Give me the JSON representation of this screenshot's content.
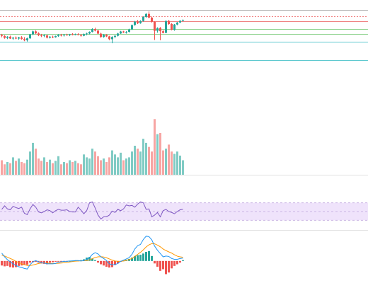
{
  "colors": {
    "up": "#26a69a",
    "down": "#ef5350",
    "volume_up": "#80cbc4",
    "volume_down": "#f7a5a3",
    "rsi_line": "#7e57c2",
    "rsi_band": "#efe3fb",
    "macd_line": "#2196f3",
    "signal_line": "#ff9800",
    "hist_up": "#26a69a",
    "hist_down": "#ef5350",
    "line_top": "#b0b0b0",
    "line_red": "#f08080",
    "line_green": "#8fd38f",
    "line_cyan": "#5fc9cf",
    "pane_divider": "#e0e0e0"
  },
  "chart_data": {
    "type": "candlestick-with-indicators",
    "title": "",
    "grid": false,
    "legend": "none",
    "price": {
      "ylim": [
        80,
        160
      ],
      "h_lines": [
        {
          "value": 155,
          "style": "solid",
          "color_key": "line_top"
        },
        {
          "value": 150,
          "style": "dotted",
          "color_key": "line_red"
        },
        {
          "value": 146,
          "style": "solid",
          "color_key": "line_red"
        },
        {
          "value": 140,
          "style": "solid",
          "color_key": "line_green"
        },
        {
          "value": 136,
          "style": "solid",
          "color_key": "line_green"
        },
        {
          "value": 130,
          "style": "solid",
          "color_key": "line_cyan"
        },
        {
          "value": 115,
          "style": "solid",
          "color_key": "line_cyan"
        }
      ],
      "ohlc": [
        [
          135.2,
          136.0,
          133.3,
          134.4
        ],
        [
          134.4,
          135.0,
          132.2,
          132.8
        ],
        [
          132.8,
          134.2,
          131.9,
          133.8
        ],
        [
          133.8,
          134.6,
          132.0,
          132.3
        ],
        [
          132.3,
          133.5,
          131.3,
          133.0
        ],
        [
          133.0,
          134.0,
          131.8,
          132.3
        ],
        [
          132.3,
          133.7,
          131.4,
          133.2
        ],
        [
          133.2,
          134.2,
          131.5,
          131.9
        ],
        [
          131.9,
          133.4,
          130.2,
          130.9
        ],
        [
          130.9,
          133.0,
          129.9,
          132.5
        ],
        [
          132.5,
          136.0,
          132.0,
          135.6
        ],
        [
          135.6,
          138.6,
          135.0,
          138.0
        ],
        [
          138.0,
          138.8,
          135.8,
          136.4
        ],
        [
          136.4,
          137.3,
          134.2,
          134.9
        ],
        [
          134.9,
          136.0,
          133.5,
          134.4
        ],
        [
          134.4,
          135.6,
          133.4,
          134.8
        ],
        [
          134.8,
          135.4,
          132.4,
          133.0
        ],
        [
          133.0,
          134.3,
          132.4,
          133.8
        ],
        [
          133.8,
          134.6,
          132.6,
          133.3
        ],
        [
          133.3,
          134.6,
          133.0,
          134.3
        ],
        [
          134.3,
          135.8,
          133.7,
          135.2
        ],
        [
          135.2,
          136.0,
          134.0,
          134.8
        ],
        [
          134.8,
          135.8,
          133.9,
          135.4
        ],
        [
          135.4,
          136.1,
          134.6,
          135.0
        ],
        [
          135.0,
          136.0,
          134.2,
          135.7
        ],
        [
          135.7,
          136.6,
          134.8,
          135.4
        ],
        [
          135.4,
          136.2,
          134.9,
          135.7
        ],
        [
          135.7,
          136.6,
          134.8,
          135.2
        ],
        [
          135.2,
          135.8,
          133.8,
          134.5
        ],
        [
          134.5,
          136.3,
          134.1,
          135.8
        ],
        [
          135.8,
          137.0,
          134.9,
          136.3
        ],
        [
          136.3,
          138.0,
          135.6,
          137.6
        ],
        [
          137.6,
          140.4,
          137.2,
          139.8
        ],
        [
          139.8,
          141.0,
          138.0,
          138.6
        ],
        [
          138.6,
          139.2,
          135.8,
          136.2
        ],
        [
          136.2,
          136.9,
          133.0,
          133.5
        ],
        [
          133.5,
          135.8,
          133.0,
          135.3
        ],
        [
          135.3,
          135.8,
          133.5,
          134.0
        ],
        [
          134.0,
          134.5,
          131.0,
          131.8
        ],
        [
          131.8,
          134.1,
          128.6,
          133.6
        ],
        [
          133.6,
          135.0,
          132.5,
          134.5
        ],
        [
          134.5,
          136.8,
          134.0,
          136.3
        ],
        [
          136.3,
          138.4,
          136.0,
          137.9
        ],
        [
          137.9,
          138.4,
          136.7,
          137.2
        ],
        [
          137.2,
          138.2,
          136.2,
          137.6
        ],
        [
          137.6,
          140.1,
          137.1,
          139.5
        ],
        [
          139.5,
          143.4,
          139.1,
          143.0
        ],
        [
          143.0,
          146.2,
          142.5,
          145.7
        ],
        [
          145.7,
          147.0,
          143.8,
          144.4
        ],
        [
          144.4,
          146.8,
          144.0,
          146.2
        ],
        [
          146.2,
          150.0,
          145.7,
          149.4
        ],
        [
          149.4,
          152.4,
          148.8,
          151.8
        ],
        [
          151.8,
          153.8,
          148.3,
          148.9
        ],
        [
          148.9,
          149.6,
          145.0,
          145.6
        ],
        [
          145.6,
          146.0,
          131.2,
          138.4
        ],
        [
          138.4,
          141.2,
          137.0,
          140.7
        ],
        [
          140.7,
          141.4,
          131.0,
          138.1
        ],
        [
          138.1,
          139.0,
          136.4,
          136.8
        ],
        [
          136.8,
          146.5,
          136.6,
          146.3
        ],
        [
          146.3,
          147.0,
          143.2,
          143.8
        ],
        [
          143.8,
          144.5,
          138.8,
          139.2
        ],
        [
          139.2,
          143.8,
          138.5,
          143.4
        ],
        [
          143.4,
          145.4,
          142.9,
          145.0
        ],
        [
          145.0,
          146.8,
          144.6,
          146.4
        ],
        [
          146.4,
          147.4,
          145.9,
          147.0
        ]
      ]
    },
    "volume": {
      "ylim": [
        0,
        100
      ],
      "values": [
        25,
        18,
        22,
        20,
        30,
        24,
        28,
        22,
        20,
        26,
        40,
        55,
        45,
        28,
        24,
        30,
        22,
        26,
        20,
        24,
        32,
        18,
        22,
        20,
        25,
        22,
        24,
        20,
        18,
        35,
        30,
        28,
        45,
        40,
        32,
        25,
        28,
        22,
        30,
        42,
        35,
        30,
        38,
        25,
        28,
        30,
        40,
        50,
        45,
        40,
        62,
        55,
        48,
        40,
        96,
        70,
        72,
        42,
        45,
        52,
        40,
        36,
        40,
        33,
        25
      ]
    },
    "rsi": {
      "ylim": [
        0,
        100
      ],
      "band": [
        30,
        70
      ],
      "mid": 50,
      "values": [
        55,
        63,
        56,
        54,
        62,
        59,
        57,
        60,
        46,
        43,
        56,
        66,
        60,
        49,
        47,
        50,
        54,
        52,
        47,
        52,
        55,
        53,
        53,
        54,
        50,
        49,
        49,
        60,
        53,
        45,
        52,
        70,
        72,
        58,
        42,
        33,
        38,
        38,
        42,
        51,
        48,
        55,
        52,
        56,
        65,
        63,
        64,
        60,
        67,
        72,
        70,
        55,
        56,
        38,
        42,
        48,
        38,
        52,
        55,
        50,
        48,
        45,
        50,
        54,
        55
      ]
    },
    "macd": {
      "ylim": [
        -2.5,
        3.5
      ],
      "macd": [
        0.95,
        0.5,
        0.15,
        -0.1,
        -0.35,
        -0.55,
        -0.7,
        -0.8,
        -0.9,
        -0.98,
        -0.45,
        -0.1,
        0.05,
        -0.1,
        -0.25,
        -0.25,
        -0.35,
        -0.35,
        -0.35,
        -0.3,
        -0.15,
        -0.1,
        -0.05,
        -0.05,
        0.0,
        0.0,
        0.05,
        0.05,
        0.0,
        0.05,
        0.2,
        0.4,
        0.8,
        1.0,
        0.85,
        0.5,
        0.3,
        0.05,
        -0.35,
        -0.45,
        -0.45,
        -0.3,
        -0.05,
        0.1,
        0.25,
        0.4,
        0.8,
        1.45,
        1.85,
        2.0,
        2.6,
        3.0,
        2.95,
        2.55,
        1.8,
        1.3,
        0.9,
        0.5,
        0.6,
        0.55,
        0.3,
        0.2,
        0.2,
        0.3,
        0.35
      ],
      "signal": [
        0.7,
        0.6,
        0.45,
        0.3,
        0.15,
        -0.05,
        -0.2,
        -0.35,
        -0.45,
        -0.55,
        -0.55,
        -0.5,
        -0.4,
        -0.3,
        -0.25,
        -0.25,
        -0.25,
        -0.28,
        -0.3,
        -0.3,
        -0.28,
        -0.25,
        -0.22,
        -0.18,
        -0.12,
        -0.07,
        -0.03,
        0.0,
        0.02,
        0.03,
        0.06,
        0.12,
        0.28,
        0.42,
        0.5,
        0.52,
        0.48,
        0.38,
        0.25,
        0.1,
        0.0,
        -0.05,
        -0.05,
        0.0,
        0.08,
        0.17,
        0.3,
        0.55,
        0.8,
        1.05,
        1.35,
        1.7,
        1.95,
        2.1,
        2.08,
        1.92,
        1.72,
        1.45,
        1.26,
        1.1,
        0.95,
        0.75,
        0.58,
        0.5,
        0.45
      ],
      "hist": [
        -0.55,
        -0.65,
        -0.6,
        -0.75,
        -0.8,
        -0.75,
        -0.6,
        -0.55,
        -0.5,
        -0.45,
        -0.2,
        -0.15,
        -0.1,
        -0.2,
        -0.3,
        -0.35,
        -0.4,
        -0.2,
        -0.15,
        -0.1,
        -0.05,
        -0.05,
        -0.1,
        -0.05,
        0.0,
        0.05,
        0.05,
        0.05,
        0.1,
        0.2,
        0.4,
        0.5,
        0.3,
        0.1,
        -0.2,
        -0.4,
        -0.55,
        -0.7,
        -0.8,
        -0.75,
        -0.5,
        -0.3,
        -0.1,
        0.05,
        0.15,
        0.25,
        0.4,
        0.6,
        0.7,
        0.75,
        0.9,
        1.1,
        1.2,
        0.6,
        -0.3,
        -0.7,
        -1.2,
        -1.0,
        -1.6,
        -1.4,
        -0.9,
        -0.6,
        -0.4,
        -0.2,
        0.1
      ]
    }
  }
}
